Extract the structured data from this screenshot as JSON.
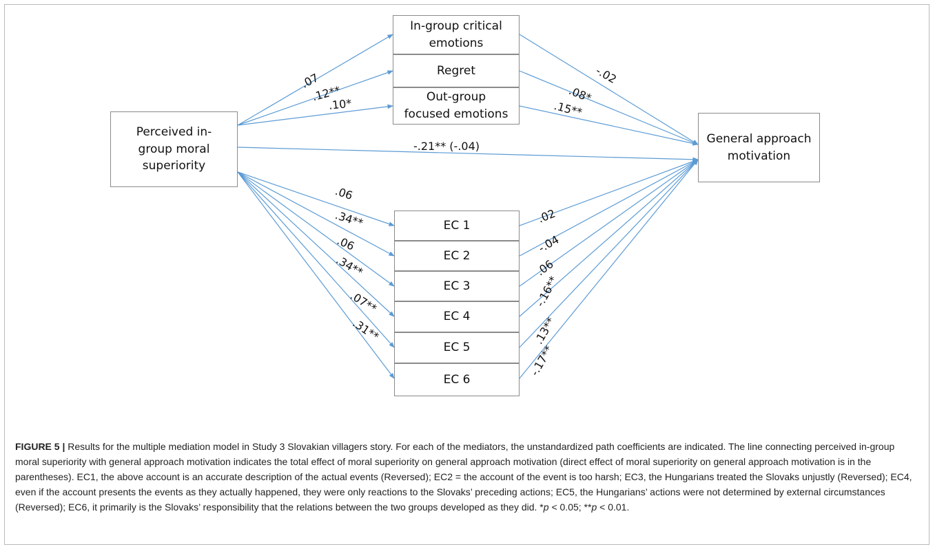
{
  "diagram": {
    "boxes": {
      "predictor": "Perceived in-\ngroup moral\nsuperiority",
      "outcome": "General approach\nmotivation",
      "ingroup_critical": "In-group critical\nemotions",
      "regret": "Regret",
      "outgroup_focused": "Out-group\nfocused emotions",
      "ec1": "EC 1",
      "ec2": "EC 2",
      "ec3": "EC 3",
      "ec4": "EC 4",
      "ec5": "EC 5",
      "ec6": "EC 6"
    },
    "coefficients": {
      "a_ingroup_critical": ".07",
      "a_regret": ".12**",
      "a_outgroup_focused": ".10*",
      "b_ingroup_critical": "-.02",
      "b_regret": ".08*",
      "b_outgroup_focused": ".15**",
      "total_effect": "-.21** (-.04)",
      "a_ec1": ".06",
      "a_ec2": ".34**",
      "a_ec3": ".06",
      "a_ec4": ".34**",
      "a_ec5": ".07**",
      "a_ec6": ".31**",
      "b_ec1": ".02",
      "b_ec2": "-.04",
      "b_ec3": ".06",
      "b_ec4": "-.16**",
      "b_ec5": ".13**",
      "b_ec6": "-.17**"
    },
    "line_color": "#5b9bd5"
  },
  "caption": {
    "label": "FIGURE 5 |",
    "text_1": " Results for the multiple mediation model in Study 3 Slovakian villagers story. For each of the mediators, the unstandardized path coefficients are indicated. The line connecting perceived in-group moral superiority with general approach motivation indicates the total effect of moral superiority on general approach motivation (direct effect of moral superiority on general approach motivation is in the parentheses). EC1, the above account is an accurate description of the actual events (Reversed); EC2 = the account of the event is too harsh; EC3, the Hungarians treated the Slovaks unjustly (Reversed); EC4, even if the account presents the events as they actually happened, they were only reactions to the Slovaks’ preceding actions; EC5, the Hungarians’ actions were not determined by external circumstances (Reversed); EC6, it primarily is the Slovaks’ responsibility that the relations between the two groups developed as they did. *",
    "p1": "p",
    "text_2": " < 0.05; **",
    "p2": "p",
    "text_3": " < 0.01."
  }
}
